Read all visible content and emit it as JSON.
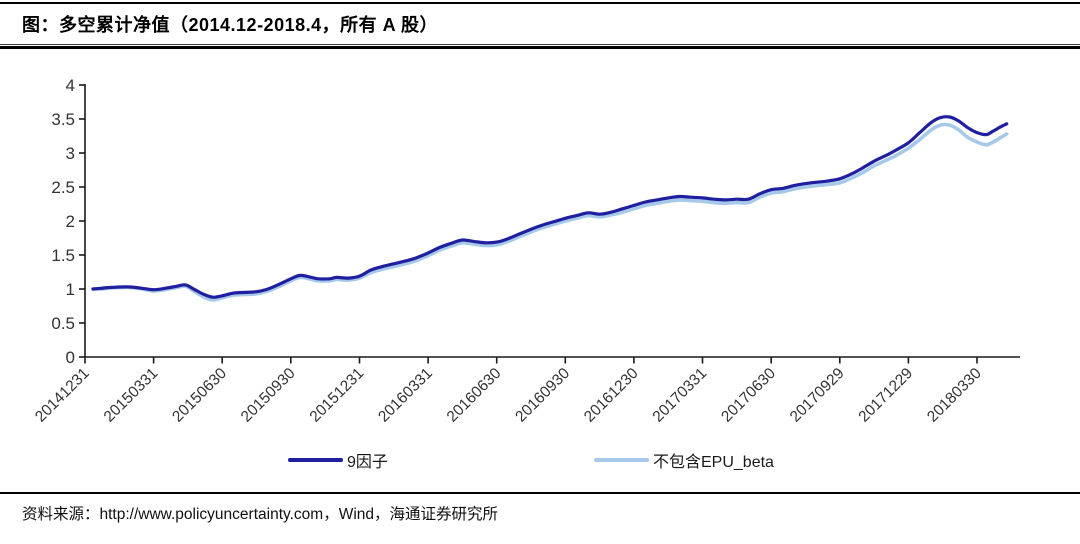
{
  "figure": {
    "title": "图：多空累计净值（2014.12-2018.4，所有 A 股）",
    "source": "资料来源：http://www.policyuncertainty.com，Wind，海通证券研究所"
  },
  "chart_data": {
    "type": "line",
    "title": "多空累计净值（2014.12-2018.4，所有 A 股）",
    "xlabel": "",
    "ylabel": "",
    "ylim": [
      0,
      4
    ],
    "y_tick_labels": [
      "0",
      "0.5",
      "1",
      "1.5",
      "2",
      "2.5",
      "3",
      "3.5",
      "4"
    ],
    "y_ticks": [
      0,
      0.5,
      1,
      1.5,
      2,
      2.5,
      3,
      3.5,
      4
    ],
    "x_tick_labels": [
      "20141231",
      "20150331",
      "20150630",
      "20150930",
      "20151231",
      "20160331",
      "20160630",
      "20160930",
      "20161230",
      "20170331",
      "20170630",
      "20170929",
      "20171229",
      "20180330"
    ],
    "x_tick_t": [
      0,
      3,
      6,
      9,
      12,
      15,
      18,
      21,
      24,
      27,
      30,
      33,
      36,
      39
    ],
    "x_unit": "months_since_2014-12-31",
    "grid": "off",
    "legend_position": "bottom",
    "axis_color": "#1a1a1a",
    "tick_label_color": "#333333",
    "series": [
      {
        "name": "9因子",
        "color": "#1F1FA0",
        "stroke_width": 3.2,
        "points": [
          [
            0.35,
            1.0
          ],
          [
            0.7,
            1.01
          ],
          [
            1,
            1.02
          ],
          [
            1.5,
            1.03
          ],
          [
            2,
            1.03
          ],
          [
            2.5,
            1.01
          ],
          [
            3,
            0.99
          ],
          [
            3.5,
            1.01
          ],
          [
            4,
            1.04
          ],
          [
            4.4,
            1.06
          ],
          [
            4.8,
            0.99
          ],
          [
            5.2,
            0.92
          ],
          [
            5.6,
            0.88
          ],
          [
            6,
            0.9
          ],
          [
            6.5,
            0.94
          ],
          [
            7,
            0.95
          ],
          [
            7.5,
            0.96
          ],
          [
            8,
            1.0
          ],
          [
            8.5,
            1.07
          ],
          [
            9,
            1.15
          ],
          [
            9.4,
            1.2
          ],
          [
            9.8,
            1.18
          ],
          [
            10.2,
            1.15
          ],
          [
            10.7,
            1.15
          ],
          [
            11,
            1.17
          ],
          [
            11.5,
            1.16
          ],
          [
            12,
            1.19
          ],
          [
            12.5,
            1.28
          ],
          [
            13,
            1.33
          ],
          [
            13.5,
            1.37
          ],
          [
            14,
            1.41
          ],
          [
            14.5,
            1.46
          ],
          [
            15,
            1.53
          ],
          [
            15.5,
            1.61
          ],
          [
            16,
            1.67
          ],
          [
            16.5,
            1.72
          ],
          [
            17,
            1.7
          ],
          [
            17.5,
            1.68
          ],
          [
            18,
            1.69
          ],
          [
            18.5,
            1.74
          ],
          [
            19,
            1.81
          ],
          [
            19.5,
            1.88
          ],
          [
            20,
            1.94
          ],
          [
            20.5,
            1.99
          ],
          [
            21,
            2.04
          ],
          [
            21.5,
            2.08
          ],
          [
            22,
            2.12
          ],
          [
            22.5,
            2.1
          ],
          [
            23,
            2.13
          ],
          [
            23.5,
            2.18
          ],
          [
            24,
            2.23
          ],
          [
            24.5,
            2.28
          ],
          [
            25,
            2.31
          ],
          [
            25.5,
            2.34
          ],
          [
            26,
            2.36
          ],
          [
            26.5,
            2.35
          ],
          [
            27,
            2.34
          ],
          [
            27.5,
            2.32
          ],
          [
            28,
            2.31
          ],
          [
            28.5,
            2.32
          ],
          [
            29,
            2.32
          ],
          [
            29.5,
            2.4
          ],
          [
            30,
            2.46
          ],
          [
            30.5,
            2.48
          ],
          [
            31,
            2.52
          ],
          [
            31.5,
            2.55
          ],
          [
            32,
            2.57
          ],
          [
            32.5,
            2.59
          ],
          [
            33,
            2.62
          ],
          [
            33.5,
            2.69
          ],
          [
            34,
            2.78
          ],
          [
            34.5,
            2.88
          ],
          [
            35,
            2.96
          ],
          [
            35.5,
            3.05
          ],
          [
            36,
            3.15
          ],
          [
            36.5,
            3.3
          ],
          [
            37,
            3.45
          ],
          [
            37.4,
            3.52
          ],
          [
            37.8,
            3.53
          ],
          [
            38.2,
            3.47
          ],
          [
            38.6,
            3.37
          ],
          [
            39,
            3.3
          ],
          [
            39.4,
            3.27
          ],
          [
            39.7,
            3.32
          ],
          [
            40,
            3.38
          ],
          [
            40.3,
            3.43
          ]
        ]
      },
      {
        "name": "不包含EPU_beta",
        "color": "#A6C9EA",
        "stroke_width": 3.6,
        "points": [
          [
            0.35,
            1.0
          ],
          [
            0.7,
            1.0
          ],
          [
            1,
            1.01
          ],
          [
            1.5,
            1.02
          ],
          [
            2,
            1.02
          ],
          [
            2.5,
            1.0
          ],
          [
            3,
            0.97
          ],
          [
            3.5,
            0.99
          ],
          [
            4,
            1.02
          ],
          [
            4.4,
            1.04
          ],
          [
            4.8,
            0.96
          ],
          [
            5.2,
            0.88
          ],
          [
            5.6,
            0.84
          ],
          [
            6,
            0.87
          ],
          [
            6.5,
            0.91
          ],
          [
            7,
            0.92
          ],
          [
            7.5,
            0.93
          ],
          [
            8,
            0.97
          ],
          [
            8.5,
            1.04
          ],
          [
            9,
            1.12
          ],
          [
            9.4,
            1.17
          ],
          [
            9.8,
            1.15
          ],
          [
            10.2,
            1.12
          ],
          [
            10.7,
            1.12
          ],
          [
            11,
            1.14
          ],
          [
            11.5,
            1.13
          ],
          [
            12,
            1.16
          ],
          [
            12.5,
            1.24
          ],
          [
            13,
            1.29
          ],
          [
            13.5,
            1.33
          ],
          [
            14,
            1.37
          ],
          [
            14.5,
            1.42
          ],
          [
            15,
            1.49
          ],
          [
            15.5,
            1.57
          ],
          [
            16,
            1.63
          ],
          [
            16.5,
            1.68
          ],
          [
            17,
            1.66
          ],
          [
            17.5,
            1.64
          ],
          [
            18,
            1.65
          ],
          [
            18.5,
            1.7
          ],
          [
            19,
            1.77
          ],
          [
            19.5,
            1.84
          ],
          [
            20,
            1.9
          ],
          [
            20.5,
            1.95
          ],
          [
            21,
            2.0
          ],
          [
            21.5,
            2.04
          ],
          [
            22,
            2.08
          ],
          [
            22.5,
            2.06
          ],
          [
            23,
            2.09
          ],
          [
            23.5,
            2.13
          ],
          [
            24,
            2.18
          ],
          [
            24.5,
            2.23
          ],
          [
            25,
            2.26
          ],
          [
            25.5,
            2.29
          ],
          [
            26,
            2.31
          ],
          [
            26.5,
            2.3
          ],
          [
            27,
            2.29
          ],
          [
            27.5,
            2.27
          ],
          [
            28,
            2.26
          ],
          [
            28.5,
            2.27
          ],
          [
            29,
            2.27
          ],
          [
            29.5,
            2.35
          ],
          [
            30,
            2.41
          ],
          [
            30.5,
            2.43
          ],
          [
            31,
            2.47
          ],
          [
            31.5,
            2.5
          ],
          [
            32,
            2.52
          ],
          [
            32.5,
            2.54
          ],
          [
            33,
            2.56
          ],
          [
            33.5,
            2.63
          ],
          [
            34,
            2.71
          ],
          [
            34.5,
            2.81
          ],
          [
            35,
            2.89
          ],
          [
            35.5,
            2.97
          ],
          [
            36,
            3.07
          ],
          [
            36.5,
            3.2
          ],
          [
            37,
            3.34
          ],
          [
            37.4,
            3.41
          ],
          [
            37.8,
            3.41
          ],
          [
            38.2,
            3.34
          ],
          [
            38.6,
            3.23
          ],
          [
            39,
            3.16
          ],
          [
            39.4,
            3.12
          ],
          [
            39.7,
            3.16
          ],
          [
            40,
            3.22
          ],
          [
            40.3,
            3.28
          ]
        ]
      }
    ]
  }
}
